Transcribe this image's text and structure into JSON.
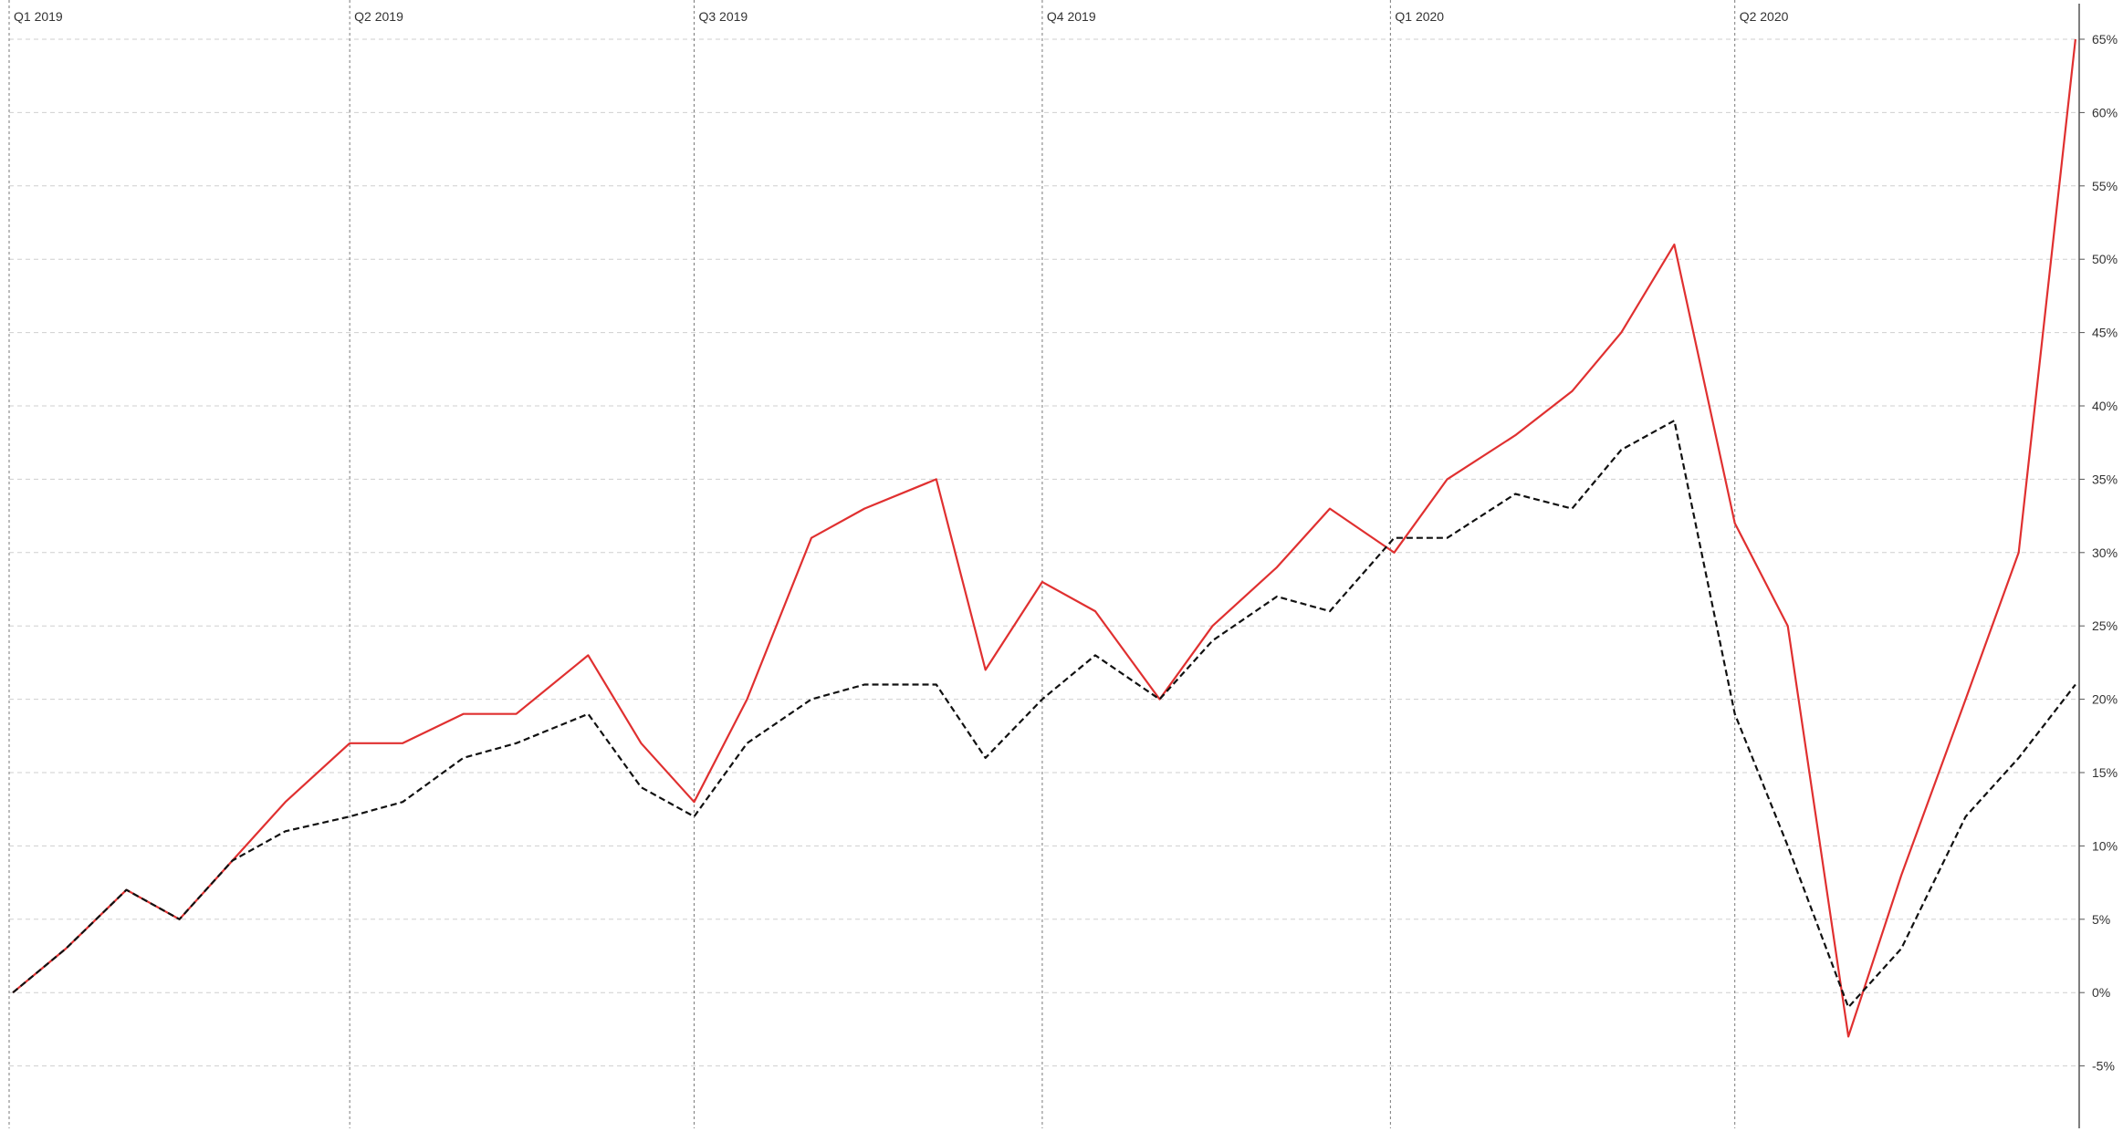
{
  "chart_data": {
    "type": "line",
    "x_ticks": [
      "Q1 2019",
      "Q2 2019",
      "Q3 2019",
      "Q4 2019",
      "Q1 2020",
      "Q2 2020"
    ],
    "y_ticks": [
      "65%",
      "60%",
      "55%",
      "50%",
      "45%",
      "40%",
      "35%",
      "30%",
      "25%",
      "20%",
      "15%",
      "10%",
      "5%",
      "0%",
      "-5%"
    ],
    "ylim": [
      -9,
      67
    ],
    "grid": true,
    "legend": "none",
    "x": [
      "2019-01-02",
      "2019-01-16",
      "2019-02-01",
      "2019-02-15",
      "2019-03-01",
      "2019-03-15",
      "2019-04-01",
      "2019-04-15",
      "2019-05-01",
      "2019-05-15",
      "2019-06-03",
      "2019-06-17",
      "2019-07-01",
      "2019-07-15",
      "2019-08-01",
      "2019-08-15",
      "2019-09-03",
      "2019-09-16",
      "2019-10-01",
      "2019-10-15",
      "2019-11-01",
      "2019-11-15",
      "2019-12-02",
      "2019-12-16",
      "2020-01-02",
      "2020-01-16",
      "2020-02-03",
      "2020-02-18",
      "2020-03-02",
      "2020-03-16",
      "2020-04-01",
      "2020-04-15",
      "2020-05-01",
      "2020-05-15",
      "2020-06-01",
      "2020-06-15",
      "2020-06-30"
    ],
    "series": [
      {
        "values": [
          0,
          3,
          7,
          5,
          9,
          13,
          17,
          17,
          19,
          19,
          23,
          17,
          13,
          20,
          31,
          33,
          35,
          22,
          28,
          26,
          20,
          25,
          29,
          33,
          30,
          35,
          38,
          41,
          45,
          51,
          32,
          25,
          -3,
          8,
          20,
          30,
          65
        ],
        "color": "#e03030",
        "style": "solid"
      },
      {
        "values": [
          0,
          3,
          7,
          5,
          9,
          11,
          12,
          13,
          16,
          17,
          19,
          14,
          12,
          17,
          20,
          21,
          21,
          16,
          20,
          23,
          20,
          24,
          27,
          26,
          31,
          31,
          34,
          33,
          37,
          39,
          19,
          10,
          -1,
          3,
          12,
          16,
          21
        ],
        "color": "#111111",
        "style": "dashed"
      }
    ]
  }
}
